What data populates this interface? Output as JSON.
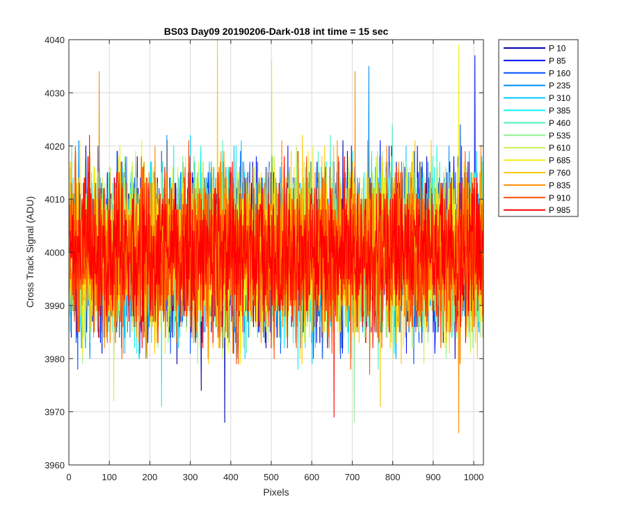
{
  "chart_data": {
    "type": "line",
    "title": "BS03 Day09 20190206-Dark-018 int time = 15 sec",
    "xlabel": "Pixels",
    "ylabel": "Cross Track Signal (ADU)",
    "xlim": [
      0,
      1024
    ],
    "ylim": [
      3960,
      4040
    ],
    "xticks": [
      0,
      100,
      200,
      300,
      400,
      500,
      600,
      700,
      800,
      900,
      1000
    ],
    "yticks": [
      3960,
      3970,
      3980,
      3990,
      4000,
      4010,
      4020,
      4030,
      4040
    ],
    "grid": true,
    "legend_location": "outside-right-top",
    "n_pixels": 1024,
    "noise_summary": {
      "mean": 4000,
      "typical_min": 3978,
      "typical_max": 4022,
      "extreme_min": 3966,
      "extreme_max": 4040
    },
    "series": [
      {
        "name": "P 10",
        "color": "#0000B0"
      },
      {
        "name": "P 85",
        "color": "#0010FF"
      },
      {
        "name": "P 160",
        "color": "#0050FF"
      },
      {
        "name": "P 235",
        "color": "#0090FF"
      },
      {
        "name": "P 310",
        "color": "#00C8FF"
      },
      {
        "name": "P 385",
        "color": "#10F0F0"
      },
      {
        "name": "P 460",
        "color": "#50F0C0"
      },
      {
        "name": "P 535",
        "color": "#90F090"
      },
      {
        "name": "P 610",
        "color": "#C8F050"
      },
      {
        "name": "P 685",
        "color": "#F0F010"
      },
      {
        "name": "P 760",
        "color": "#FFC800"
      },
      {
        "name": "P 835",
        "color": "#FF8C00"
      },
      {
        "name": "P 910",
        "color": "#FF4C00"
      },
      {
        "name": "P 985",
        "color": "#FF0000"
      }
    ],
    "peaks": [
      {
        "series": "P 760",
        "x": 366,
        "y": 4040
      },
      {
        "series": "P 10",
        "x": 384,
        "y": 3968
      },
      {
        "series": "P 685",
        "x": 962,
        "y": 4039
      },
      {
        "series": "P 835",
        "x": 962,
        "y": 3966
      },
      {
        "series": "P 85",
        "x": 1002,
        "y": 4037
      },
      {
        "series": "P 610",
        "x": 500,
        "y": 4036
      },
      {
        "series": "P 385",
        "x": 228,
        "y": 4034
      },
      {
        "series": "P 835",
        "x": 74,
        "y": 4034
      },
      {
        "series": "P 835",
        "x": 706,
        "y": 4034
      },
      {
        "series": "P 235",
        "x": 740,
        "y": 4035
      },
      {
        "series": "P 985",
        "x": 654,
        "y": 3969
      },
      {
        "series": "P 535",
        "x": 704,
        "y": 3968
      },
      {
        "series": "P 760",
        "x": 768,
        "y": 3971
      },
      {
        "series": "P 385",
        "x": 228,
        "y": 3971
      },
      {
        "series": "P 610",
        "x": 110,
        "y": 3972
      },
      {
        "series": "P 10",
        "x": 326,
        "y": 3974
      }
    ]
  }
}
